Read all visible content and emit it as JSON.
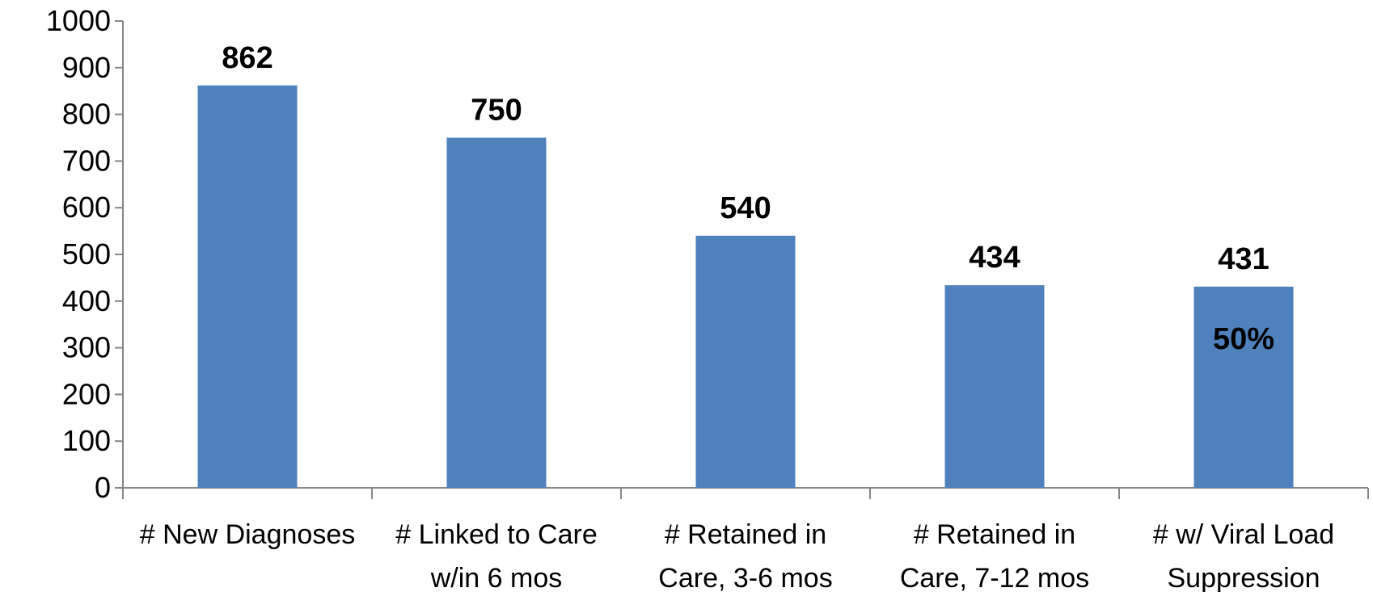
{
  "chart_data": {
    "type": "bar",
    "categories": [
      [
        "# New Diagnoses"
      ],
      [
        "# Linked to Care",
        "w/in 6 mos"
      ],
      [
        "# Retained in",
        "Care, 3-6 mos"
      ],
      [
        "# Retained in",
        "Care, 7-12 mos"
      ],
      [
        "# w/ Viral Load",
        "Suppression"
      ]
    ],
    "values": [
      862,
      750,
      540,
      434,
      431
    ],
    "data_labels": [
      "862",
      "750",
      "540",
      "434",
      "431"
    ],
    "annotations": [
      {
        "category_index": 4,
        "text": "50%"
      }
    ],
    "ylim": [
      0,
      1000
    ],
    "yticks": [
      0,
      100,
      200,
      300,
      400,
      500,
      600,
      700,
      800,
      900,
      1000
    ],
    "title": "",
    "xlabel": "",
    "ylabel": "",
    "bar_color": "#4F81BD",
    "grid": false,
    "legend": "none"
  }
}
